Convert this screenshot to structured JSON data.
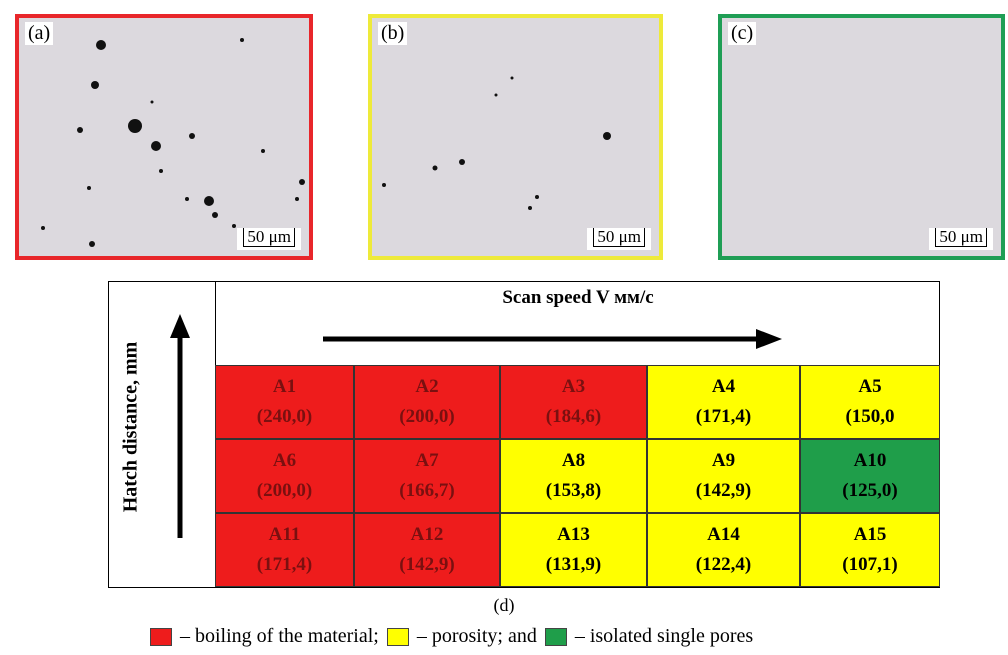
{
  "panels": [
    {
      "label": "(a)",
      "scale": "50 μm",
      "border": "#e8262a"
    },
    {
      "label": "(b)",
      "scale": "50 μm",
      "border": "#eeea3a"
    },
    {
      "label": "(c)",
      "scale": "50 μm",
      "border": "#1f9e55"
    }
  ],
  "table": {
    "header": "Scan speed V мм/с",
    "y_axis": "Hatch distance, mm",
    "rows": [
      [
        {
          "id": "A1",
          "value": "(240,0)",
          "status": 0
        },
        {
          "id": "A2",
          "value": "(200,0)",
          "status": 0
        },
        {
          "id": "A3",
          "value": "(184,6)",
          "status": 0
        },
        {
          "id": "A4",
          "value": "(171,4)",
          "status": 1
        },
        {
          "id": "A5",
          "value": "(150,0",
          "status": 1
        }
      ],
      [
        {
          "id": "A6",
          "value": "(200,0)",
          "status": 0
        },
        {
          "id": "A7",
          "value": "(166,7)",
          "status": 0
        },
        {
          "id": "A8",
          "value": "(153,8)",
          "status": 1
        },
        {
          "id": "A9",
          "value": "(142,9)",
          "status": 1
        },
        {
          "id": "A10",
          "value": "(125,0)",
          "status": 2
        }
      ],
      [
        {
          "id": "A11",
          "value": "(171,4)",
          "status": 0
        },
        {
          "id": "A12",
          "value": "(142,9)",
          "status": 0
        },
        {
          "id": "A13",
          "value": "(131,9)",
          "status": 1
        },
        {
          "id": "A14",
          "value": "(122,4)",
          "status": 1
        },
        {
          "id": "A15",
          "value": "(107,1)",
          "status": 1
        }
      ]
    ]
  },
  "caption": "(d)",
  "legend": [
    {
      "color": "#ee1c1c",
      "text": "– boiling of the material;"
    },
    {
      "color": "#ffff00",
      "text": "– porosity; and"
    },
    {
      "color": "#1f9e4a",
      "text": "– isolated single pores"
    }
  ]
}
